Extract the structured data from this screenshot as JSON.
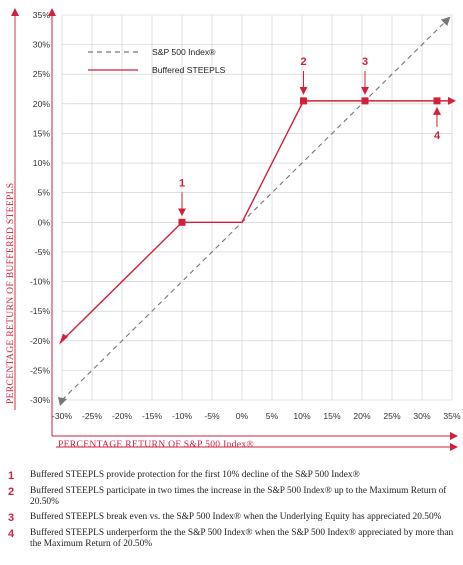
{
  "chart_data": {
    "type": "line",
    "title": "",
    "xlabel": "PERCENTAGE RETURN OF S&P 500 Index®",
    "ylabel": "PERCENTAGE RETURN OF BUFFERED STEEPLS",
    "xlim": [
      -30,
      35
    ],
    "ylim": [
      -30,
      35
    ],
    "x_ticks": [
      "-30%",
      "-25%",
      "-20%",
      "-15%",
      "-10%",
      "-5%",
      "0%",
      "5%",
      "10%",
      "15%",
      "20%",
      "25%",
      "30%",
      "35%"
    ],
    "y_ticks": [
      "35%",
      "30%",
      "25%",
      "20%",
      "15%",
      "10%",
      "5%",
      "0%",
      "-5%",
      "-10%",
      "-15%",
      "-20%",
      "-25%",
      "-30%"
    ],
    "grid": true,
    "legend_position": "top-left",
    "series": [
      {
        "name": "S&P 500 Index®",
        "style": "dashed",
        "color": "#777777",
        "x": [
          -30,
          35
        ],
        "y": [
          -30,
          35
        ]
      },
      {
        "name": "Buffered STEEPLS",
        "style": "solid",
        "color": "#d21f3c",
        "x": [
          -30,
          -10,
          0,
          10.25,
          20.5,
          32.5
        ],
        "y": [
          -20,
          0,
          0,
          20.5,
          20.5,
          20.5
        ]
      }
    ],
    "markers": [
      {
        "x": -10,
        "y": 0
      },
      {
        "x": 10.25,
        "y": 20.5
      },
      {
        "x": 20.5,
        "y": 20.5
      },
      {
        "x": 32.5,
        "y": 20.5
      }
    ],
    "annotations": [
      {
        "label": "1",
        "x": -10,
        "y": 0
      },
      {
        "label": "2",
        "x": 10.25,
        "y": 20.5
      },
      {
        "label": "3",
        "x": 20.5,
        "y": 20.5
      },
      {
        "label": "4",
        "x": 32.5,
        "y": 20.5
      }
    ]
  },
  "colors": {
    "accent": "#d21f3c",
    "grid": "#cccccc",
    "diagonal": "#777777"
  },
  "notes": [
    {
      "number": "1",
      "text": "Buffered STEEPLS provide protection for the first 10% decline of the S&P 500 Index®"
    },
    {
      "number": "2",
      "text": "Buffered STEEPLS participate in two times the increase in the S&P 500 Index® up to the Maximum Return of 20.50%"
    },
    {
      "number": "3",
      "text": "Buffered STEEPLS break even vs. the S&P 500 Index® when the Underlying Equity has appreciated 20.50%"
    },
    {
      "number": "4",
      "text": "Buffered STEEPLS underperform the the S&P 500 Index® when the S&P 500 Index® appreciated by more than the Maximum Return of 20.50%"
    }
  ]
}
